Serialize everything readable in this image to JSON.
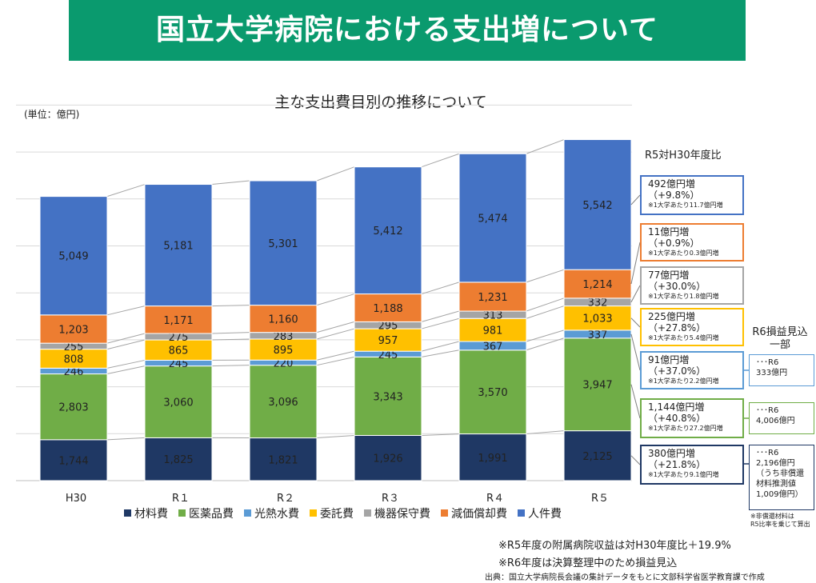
{
  "title": "国立大学病院における支出増について",
  "subtitle": "主な支出費目別の推移について",
  "unit_label": "(単位：億円)",
  "comparison_heading": "R5対H30年度比",
  "colors": {
    "banner": "#0a9a6e",
    "材料費": "#1f3864",
    "医薬品費": "#70ad47",
    "光熱水費": "#5b9bd5",
    "委託費": "#ffc000",
    "機器保守費": "#a5a5a5",
    "減価償却費": "#ed7d31",
    "人件費": "#4472c4"
  },
  "chart_data": {
    "type": "bar",
    "stacked": true,
    "title": "主な支出費目別の推移について",
    "ylabel": "(単位：億円)",
    "categories": [
      "H30",
      "R１",
      "R２",
      "R３",
      "R４",
      "R５"
    ],
    "series": [
      {
        "name": "材料費",
        "values": [
          1744,
          1825,
          1821,
          1926,
          1991,
          2125
        ]
      },
      {
        "name": "医薬品費",
        "values": [
          2803,
          3060,
          3096,
          3343,
          3570,
          3947
        ]
      },
      {
        "name": "光熱水費",
        "values": [
          246,
          245,
          220,
          245,
          367,
          337
        ]
      },
      {
        "name": "委託費",
        "values": [
          808,
          865,
          895,
          957,
          981,
          1033
        ]
      },
      {
        "name": "機器保守費",
        "values": [
          255,
          275,
          283,
          295,
          313,
          332
        ]
      },
      {
        "name": "減価償却費",
        "values": [
          1203,
          1171,
          1160,
          1188,
          1231,
          1214
        ]
      },
      {
        "name": "人件費",
        "values": [
          5049,
          5181,
          5301,
          5412,
          5474,
          5542
        ]
      }
    ],
    "value_labels": [
      [
        "1,744",
        "1,825",
        "1,821",
        "1,926",
        "1,991",
        "2,125"
      ],
      [
        "2,803",
        "3,060",
        "3,096",
        "3,343",
        "3,570",
        "3,947"
      ],
      [
        "246",
        "245",
        "220",
        "245",
        "367",
        "337"
      ],
      [
        "808",
        "865",
        "895",
        "957",
        "981",
        "1,033"
      ],
      [
        "255",
        "275",
        "283",
        "295",
        "313",
        "332"
      ],
      [
        "1,203",
        "1,171",
        "1,160",
        "1,188",
        "1,231",
        "1,214"
      ],
      [
        "5,049",
        "5,181",
        "5,301",
        "5,412",
        "5,474",
        "5,542"
      ]
    ],
    "ylim": [
      0,
      16000
    ],
    "grid": true,
    "legend": "bottom"
  },
  "comparisons": [
    {
      "series": "人件費",
      "main": "492億円増",
      "pct": "（+9.8%）",
      "note": "※1大学あたり11.7億円増"
    },
    {
      "series": "減価償却費",
      "main": "11億円増",
      "pct": "（+0.9%）",
      "note": "※1大学あたり0.3億円増"
    },
    {
      "series": "機器保守費",
      "main": "77億円増",
      "pct": "（+30.0%）",
      "note": "※1大学あたり1.8億円増"
    },
    {
      "series": "委託費",
      "main": "225億円増",
      "pct": "（+27.8%）",
      "note": "※1大学あたり5.4億円増"
    },
    {
      "series": "光熱水費",
      "main": "91億円増",
      "pct": "（+37.0%）",
      "note": "※1大学あたり2.2億円増"
    },
    {
      "series": "医薬品費",
      "main": "1,144億円増",
      "pct": "（+40.8%）",
      "note": "※1大学あたり27.2億円増"
    },
    {
      "series": "材料費",
      "main": "380億円増",
      "pct": "（+21.8%）",
      "note": "※1大学あたり9.1億円増"
    }
  ],
  "r6": {
    "heading": "R6損益見込\n一部",
    "boxes": [
      {
        "series": "光熱水費",
        "text": "･･･R6\n333億円"
      },
      {
        "series": "医薬品費",
        "text": "･･･R6\n4,006億円"
      },
      {
        "series": "材料費",
        "text": "･･･R6\n2,196億円\n（うち非償還\n材料推測値\n1,009億円）"
      }
    ],
    "footnote": "※非償還材料は\nR5比率を乗じて算出"
  },
  "notes": [
    "※R5年度の附属病院収益は対H30年度比＋19.9%",
    "※R6年度は決算整理中のため損益見込"
  ],
  "source": "出典：国立大学病院長会議の集計データをもとに文部科学省医学教育課で作成"
}
